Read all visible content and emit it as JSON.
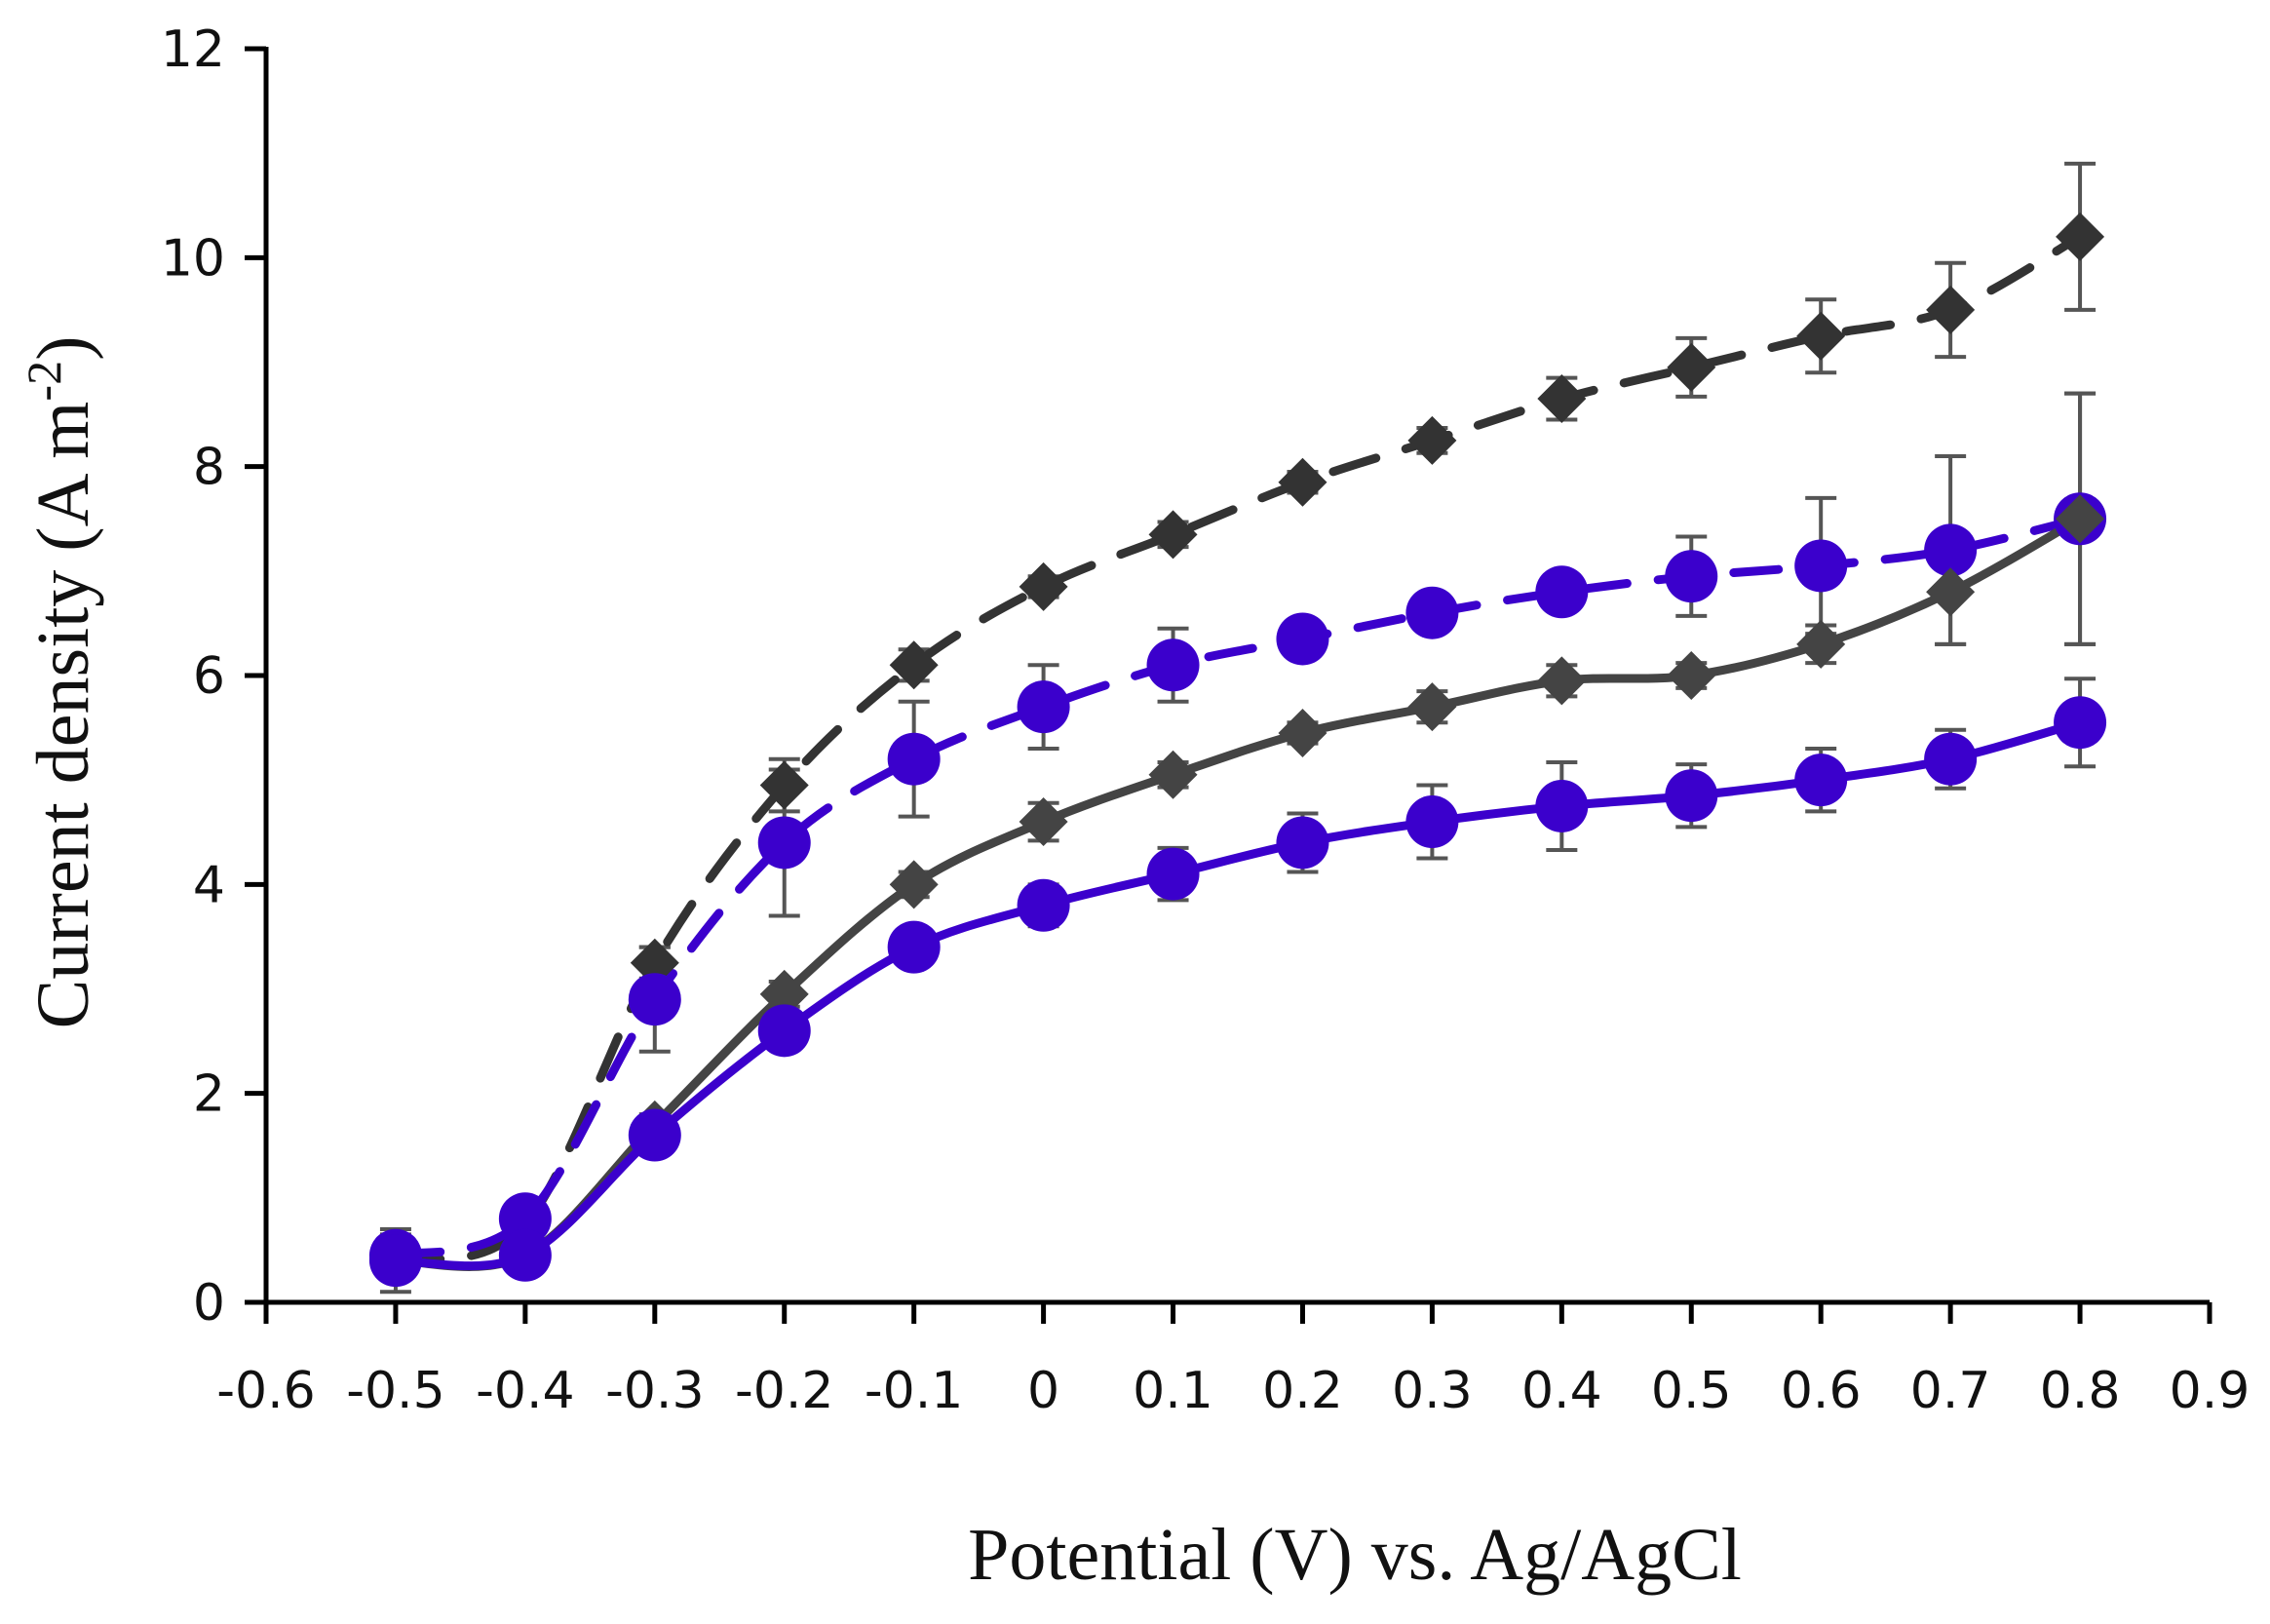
{
  "chart_data": {
    "type": "line",
    "title": "",
    "xlabel": "Potential (V) vs. Ag/AgCl",
    "ylabel_main": "Current density (A m",
    "ylabel_sup": "-2",
    "ylabel_close": ")",
    "xlim": [
      -0.6,
      0.9
    ],
    "ylim": [
      0,
      12
    ],
    "x_ticks": [
      "-0.6",
      "-0.5",
      "-0.4",
      "-0.3",
      "-0.2",
      "-0.1",
      "0",
      "0.1",
      "0.2",
      "0.3",
      "0.4",
      "0.5",
      "0.6",
      "0.7",
      "0.8",
      "0.9"
    ],
    "y_ticks": [
      "0",
      "2",
      "4",
      "6",
      "8",
      "10",
      "12"
    ],
    "grid": false,
    "legend": "none",
    "series": [
      {
        "name": "dark-dashed-diamond",
        "color": "#333333",
        "line": "dashed",
        "marker": "diamond",
        "x": [
          -0.5,
          -0.4,
          -0.3,
          -0.2,
          -0.1,
          0,
          0.1,
          0.2,
          0.3,
          0.4,
          0.5,
          0.6,
          0.7,
          0.8
        ],
        "values": [
          0.4,
          0.75,
          3.25,
          4.95,
          6.1,
          6.85,
          7.35,
          7.85,
          8.25,
          8.65,
          8.95,
          9.25,
          9.5,
          10.2
        ],
        "errors": [
          0.3,
          0.15,
          0.15,
          0.25,
          0.15,
          0.1,
          0.12,
          0.1,
          0.12,
          0.2,
          0.28,
          0.35,
          0.45,
          0.7
        ]
      },
      {
        "name": "blue-dashed-circle",
        "color": "#3B00CC",
        "line": "dashed",
        "marker": "circle",
        "x": [
          -0.5,
          -0.4,
          -0.3,
          -0.2,
          -0.1,
          0,
          0.1,
          0.2,
          0.3,
          0.4,
          0.5,
          0.6,
          0.7,
          0.8
        ],
        "values": [
          0.45,
          0.8,
          2.9,
          4.4,
          5.2,
          5.7,
          6.1,
          6.35,
          6.6,
          6.8,
          6.95,
          7.05,
          7.2,
          7.5
        ],
        "errors": [
          0.2,
          0.15,
          0.5,
          0.7,
          0.55,
          0.4,
          0.35,
          0.15,
          0.12,
          0.15,
          0.38,
          0.65,
          0.9,
          1.2
        ]
      },
      {
        "name": "dark-solid-diamond",
        "color": "#444444",
        "line": "solid",
        "marker": "diamond",
        "x": [
          -0.5,
          -0.4,
          -0.3,
          -0.2,
          -0.1,
          0,
          0.1,
          0.2,
          0.3,
          0.4,
          0.5,
          0.6,
          0.7,
          0.8
        ],
        "values": [
          0.4,
          0.45,
          1.7,
          2.95,
          4.0,
          4.6,
          5.05,
          5.45,
          5.7,
          5.95,
          6.0,
          6.3,
          6.8,
          7.5
        ],
        "errors": [
          0.15,
          0.1,
          0.1,
          0.12,
          0.12,
          0.18,
          0.12,
          0.1,
          0.15,
          0.15,
          0.12,
          0.18,
          0.5,
          1.2
        ]
      },
      {
        "name": "blue-solid-circle",
        "color": "#3B00CC",
        "line": "solid",
        "marker": "circle",
        "x": [
          -0.5,
          -0.4,
          -0.3,
          -0.2,
          -0.1,
          0,
          0.1,
          0.2,
          0.3,
          0.4,
          0.5,
          0.6,
          0.7,
          0.8
        ],
        "values": [
          0.4,
          0.45,
          1.6,
          2.6,
          3.4,
          3.8,
          4.1,
          4.4,
          4.6,
          4.75,
          4.85,
          5.0,
          5.2,
          5.55
        ],
        "errors": [
          0.1,
          0.1,
          0.12,
          0.12,
          0.12,
          0.2,
          0.25,
          0.28,
          0.35,
          0.42,
          0.3,
          0.3,
          0.28,
          0.42
        ]
      }
    ]
  }
}
